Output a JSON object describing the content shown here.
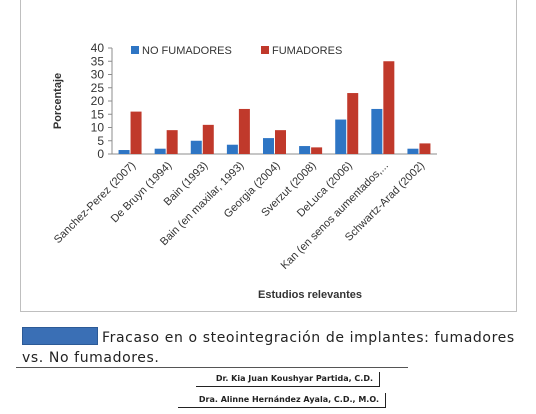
{
  "chart_data": {
    "type": "bar",
    "categories": [
      "Sanchez-Perez (2007)",
      "De Bruyn (1994)",
      "Bain (1993)",
      "Bain (en maxilar, 1993)",
      "Georgia (2004)",
      "Sverzut (2008)",
      "DeLuca (2006)",
      "Kan (en senos aumentados,...",
      "Schwartz-Arad (2002)"
    ],
    "series": [
      {
        "name": "NO FUMADORES",
        "color": "#2e75c4",
        "values": [
          1.5,
          2,
          5,
          3.5,
          6,
          3,
          13,
          17,
          2
        ]
      },
      {
        "name": "FUMADORES",
        "color": "#c0392b",
        "values": [
          16,
          9,
          11,
          17,
          9,
          2.5,
          23,
          35,
          4
        ]
      }
    ],
    "y_ticks": [
      "0",
      "5",
      "10",
      "15",
      "20",
      "25",
      "30",
      "35",
      "40"
    ],
    "ylim": [
      0,
      40
    ],
    "ylabel": "Porcentaje",
    "xlabel": "Estudios relevantes",
    "legend_position": "top",
    "grid": false
  },
  "caption": {
    "text": "Fracaso en o steointegración de implantes: fumadores vs. No fumadores."
  },
  "authors": [
    "Dr. Kia Juan Koushyar Partida, C.D.",
    "Dra. Alinne Hernández Ayala, C.D., M.O."
  ]
}
